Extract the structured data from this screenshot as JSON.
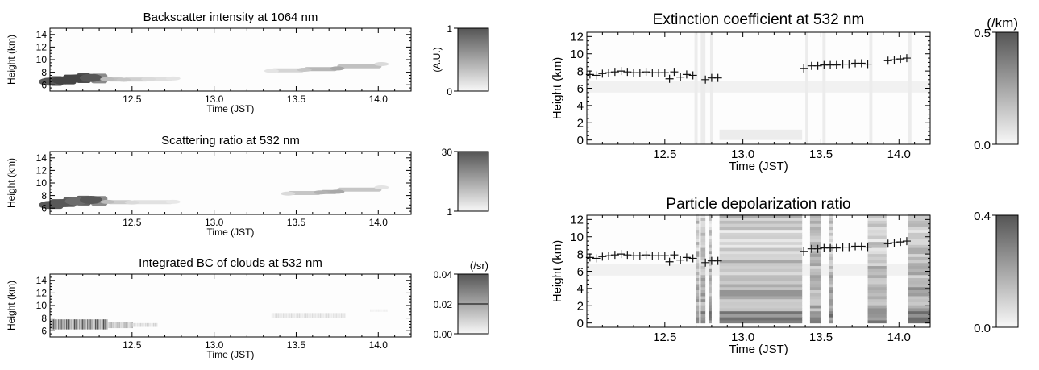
{
  "chart_data": [
    {
      "type": "heatmap",
      "title": "Backscatter intensity at 1064 nm",
      "xlabel": "Time (JST)",
      "ylabel": "Height (km)",
      "xlim": [
        12.0,
        14.2
      ],
      "ylim": [
        5,
        15
      ],
      "xticks": [
        "12.5",
        "13.0",
        "13.5",
        "14.0"
      ],
      "yticks": [
        "6",
        "8",
        "10",
        "12",
        "14"
      ],
      "colorbar": {
        "min_label": "0",
        "max_label": "1",
        "unit": "(A.U.)"
      },
      "cloud_layer": [
        {
          "x": 12.0,
          "y": 6.5,
          "v": 0.8
        },
        {
          "x": 12.08,
          "y": 6.7,
          "v": 0.9
        },
        {
          "x": 12.16,
          "y": 7.0,
          "v": 0.9
        },
        {
          "x": 12.25,
          "y": 7.1,
          "v": 0.8
        },
        {
          "x": 12.35,
          "y": 6.9,
          "v": 0.3
        },
        {
          "x": 12.45,
          "y": 6.8,
          "v": 0.25
        },
        {
          "x": 12.6,
          "y": 6.9,
          "v": 0.15
        },
        {
          "x": 12.75,
          "y": 7.0,
          "v": 0.1
        },
        {
          "x": 13.35,
          "y": 8.2,
          "v": 0.1
        },
        {
          "x": 13.55,
          "y": 8.4,
          "v": 0.25
        },
        {
          "x": 13.75,
          "y": 8.6,
          "v": 0.4
        },
        {
          "x": 14.02,
          "y": 9.3,
          "v": 0.15
        }
      ]
    },
    {
      "type": "heatmap",
      "title": "Scattering ratio at 532 nm",
      "xlabel": "Time (JST)",
      "ylabel": "Height (km)",
      "xlim": [
        12.0,
        14.2
      ],
      "ylim": [
        5,
        15
      ],
      "xticks": [
        "12.5",
        "13.0",
        "13.5",
        "14.0"
      ],
      "yticks": [
        "6",
        "8",
        "10",
        "12",
        "14"
      ],
      "colorbar": {
        "min_label": "1",
        "max_label": "30"
      },
      "cloud_layer": [
        {
          "x": 12.0,
          "y": 6.5,
          "v": 0.8
        },
        {
          "x": 12.08,
          "y": 6.8,
          "v": 0.8
        },
        {
          "x": 12.16,
          "y": 7.1,
          "v": 0.7
        },
        {
          "x": 12.25,
          "y": 7.3,
          "v": 0.8
        },
        {
          "x": 12.35,
          "y": 7.0,
          "v": 0.3
        },
        {
          "x": 12.5,
          "y": 6.9,
          "v": 0.15
        },
        {
          "x": 12.75,
          "y": 7.0,
          "v": 0.08
        },
        {
          "x": 13.45,
          "y": 8.3,
          "v": 0.15
        },
        {
          "x": 13.65,
          "y": 8.5,
          "v": 0.35
        },
        {
          "x": 13.75,
          "y": 8.6,
          "v": 0.4
        },
        {
          "x": 14.02,
          "y": 9.3,
          "v": 0.1
        }
      ]
    },
    {
      "type": "heatmap",
      "title": "Integrated BC of clouds at 532 nm",
      "xlabel": "Time (JST)",
      "ylabel": "Height (km)",
      "xlim": [
        12.0,
        14.2
      ],
      "ylim": [
        5,
        15
      ],
      "xticks": [
        "12.5",
        "13.0",
        "13.5",
        "14.0"
      ],
      "yticks": [
        "6",
        "8",
        "10",
        "12",
        "14"
      ],
      "colorbar": {
        "min_label": "0.00",
        "mid_label": "0.02",
        "max_label": "0.04",
        "unit": "(/sr)"
      },
      "columns": [
        {
          "x0": 12.0,
          "x1": 12.35,
          "ybot": 6.2,
          "ytop": 7.8,
          "v": 0.85
        },
        {
          "x0": 12.35,
          "x1": 12.5,
          "ybot": 6.4,
          "ytop": 7.4,
          "v": 0.4
        },
        {
          "x0": 12.5,
          "x1": 12.65,
          "ybot": 6.6,
          "ytop": 7.2,
          "v": 0.2
        },
        {
          "x0": 13.35,
          "x1": 13.8,
          "ybot": 8.0,
          "ytop": 8.8,
          "v": 0.15
        },
        {
          "x0": 13.95,
          "x1": 14.05,
          "ybot": 9.0,
          "ytop": 9.4,
          "v": 0.05
        }
      ]
    },
    {
      "type": "heatmap",
      "title": "Extinction coefficient at 532 nm",
      "xlabel": "Time (JST)",
      "ylabel": "Height (km)",
      "xlim": [
        12.0,
        14.2
      ],
      "ylim": [
        -0.5,
        12.5
      ],
      "xticks": [
        "12.5",
        "13.0",
        "13.5",
        "14.0"
      ],
      "yticks": [
        "0",
        "2",
        "4",
        "6",
        "8",
        "10",
        "12"
      ],
      "colorbar": {
        "min_label": "0.0",
        "max_label": "0.5",
        "unit": "(/km)"
      },
      "cloud_base_heights": [
        {
          "x": 12.02,
          "y": 7.6
        },
        {
          "x": 12.06,
          "y": 7.5
        },
        {
          "x": 12.1,
          "y": 7.7
        },
        {
          "x": 12.14,
          "y": 7.8
        },
        {
          "x": 12.18,
          "y": 7.9
        },
        {
          "x": 12.22,
          "y": 8.0
        },
        {
          "x": 12.26,
          "y": 7.9
        },
        {
          "x": 12.3,
          "y": 7.8
        },
        {
          "x": 12.34,
          "y": 7.8
        },
        {
          "x": 12.38,
          "y": 7.9
        },
        {
          "x": 12.42,
          "y": 7.8
        },
        {
          "x": 12.46,
          "y": 7.8
        },
        {
          "x": 12.5,
          "y": 7.8
        },
        {
          "x": 12.53,
          "y": 7.1
        },
        {
          "x": 12.56,
          "y": 7.9
        },
        {
          "x": 12.6,
          "y": 7.3
        },
        {
          "x": 12.64,
          "y": 7.6
        },
        {
          "x": 12.68,
          "y": 7.5
        },
        {
          "x": 12.76,
          "y": 7.0
        },
        {
          "x": 12.8,
          "y": 7.2
        },
        {
          "x": 12.84,
          "y": 7.2
        },
        {
          "x": 13.39,
          "y": 8.3
        },
        {
          "x": 13.44,
          "y": 8.6
        },
        {
          "x": 13.48,
          "y": 8.6
        },
        {
          "x": 13.52,
          "y": 8.7
        },
        {
          "x": 13.56,
          "y": 8.7
        },
        {
          "x": 13.6,
          "y": 8.7
        },
        {
          "x": 13.64,
          "y": 8.8
        },
        {
          "x": 13.68,
          "y": 8.8
        },
        {
          "x": 13.72,
          "y": 8.9
        },
        {
          "x": 13.76,
          "y": 8.9
        },
        {
          "x": 13.8,
          "y": 8.8
        },
        {
          "x": 13.93,
          "y": 9.2
        },
        {
          "x": 13.97,
          "y": 9.3
        },
        {
          "x": 14.01,
          "y": 9.4
        },
        {
          "x": 14.05,
          "y": 9.5
        }
      ],
      "noise_columns": [
        {
          "x0": 12.69,
          "x1": 12.71
        },
        {
          "x0": 12.73,
          "x1": 12.76
        },
        {
          "x0": 12.79,
          "x1": 12.81
        },
        {
          "x0": 13.4,
          "x1": 13.42
        },
        {
          "x0": 13.51,
          "x1": 13.53
        },
        {
          "x0": 13.81,
          "x1": 13.83
        },
        {
          "x0": 14.06,
          "x1": 14.08
        }
      ]
    },
    {
      "type": "heatmap",
      "title": "Particle depolarization ratio",
      "xlabel": "Time (JST)",
      "ylabel": "Height (km)",
      "xlim": [
        12.0,
        14.2
      ],
      "ylim": [
        -0.5,
        12.5
      ],
      "xticks": [
        "12.5",
        "13.0",
        "13.5",
        "14.0"
      ],
      "yticks": [
        "0",
        "2",
        "4",
        "6",
        "8",
        "10",
        "12"
      ],
      "colorbar": {
        "min_label": "0.0",
        "max_label": "0.4"
      },
      "cloud_base_heights_ref": "same as extinction panel",
      "noisy_regions": [
        {
          "x0": 12.7,
          "x1": 12.72
        },
        {
          "x0": 12.73,
          "x1": 12.76
        },
        {
          "x0": 12.78,
          "x1": 12.8
        },
        {
          "x0": 12.85,
          "x1": 13.38
        },
        {
          "x0": 13.43,
          "x1": 13.5
        },
        {
          "x0": 13.55,
          "x1": 13.58
        },
        {
          "x0": 13.8,
          "x1": 13.92
        },
        {
          "x0": 14.06,
          "x1": 14.2
        }
      ]
    }
  ]
}
